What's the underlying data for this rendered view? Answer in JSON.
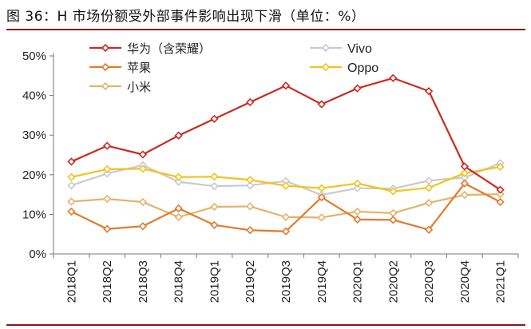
{
  "title": "图  36：H 市场份额受外部事件影响出现下滑（单位：%）",
  "chart_data": {
    "type": "line",
    "categories": [
      "2018Q1",
      "2018Q2",
      "2018Q3",
      "2018Q4",
      "2019Q1",
      "2019Q2",
      "2019Q3",
      "2019Q4",
      "2020Q1",
      "2020Q2",
      "2020Q3",
      "2020Q4",
      "2021Q1"
    ],
    "y_ticks": [
      "0%",
      "10%",
      "20%",
      "30%",
      "40%",
      "50%"
    ],
    "ylim": [
      0,
      50
    ],
    "grid": false,
    "legend_position": "top",
    "series": [
      {
        "name": "华为（含荣耀）",
        "color": "#cc2a1f",
        "values": [
          23.3,
          27.3,
          25.1,
          29.9,
          34.1,
          38.3,
          42.5,
          37.8,
          41.8,
          44.4,
          41.1,
          22.1,
          16.2
        ]
      },
      {
        "name": "Vivo",
        "color": "#c9c9d1",
        "values": [
          17.3,
          20.3,
          22.4,
          18.2,
          17.1,
          17.3,
          18.4,
          14.9,
          16.6,
          16.5,
          18.5,
          19.3,
          22.9
        ]
      },
      {
        "name": "苹果",
        "color": "#e07b2c",
        "values": [
          10.7,
          6.3,
          7.0,
          11.5,
          7.3,
          6.0,
          5.7,
          14.3,
          8.7,
          8.6,
          6.1,
          17.8,
          13.1
        ]
      },
      {
        "name": "Oppo",
        "color": "#f2c31a",
        "values": [
          19.4,
          21.4,
          21.5,
          19.4,
          19.5,
          18.7,
          17.2,
          16.6,
          17.8,
          15.8,
          16.7,
          20.4,
          22.0
        ]
      },
      {
        "name": "小米",
        "color": "#e2b36a",
        "values": [
          13.2,
          13.9,
          13.1,
          9.3,
          11.9,
          12.0,
          9.3,
          9.2,
          10.7,
          10.3,
          12.9,
          14.9,
          15.1
        ]
      }
    ]
  }
}
